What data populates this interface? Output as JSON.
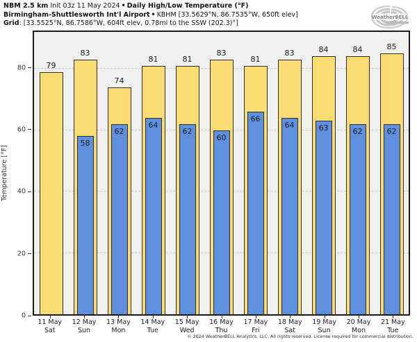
{
  "header": {
    "model": "NBM 2.5 km",
    "init": "Init 03z 11 May 2024",
    "sep": "•",
    "product_title": "Daily High/Low Temperature (°F)",
    "station": "Birmingham-Shuttlesworth Int'l Airport",
    "station_meta": "KBHM [33.5629°N, 86.7535°W, 650ft elev]",
    "grid_label": "Grid",
    "grid_meta": ": [33.5525°N, 86.7586°W, 604ft elev, 0.78mi to the SSW (202.3)°]"
  },
  "logo": {
    "text": "WeatherBELL"
  },
  "footer": {
    "copyright": "© 2024 WeatherBELL Analytics, LLC. All rights reserved. License required for commercial distribution."
  },
  "chart_data": {
    "type": "bar",
    "title": "Daily High/Low Temperature (°F)",
    "ylabel": "Temperature [°F]",
    "ylim": [
      0,
      92
    ],
    "yticks": [
      0,
      20,
      40,
      60,
      80
    ],
    "grid": "horizontal dashed lines at yticks, plot background light gray",
    "legend_position": "none (values labeled on bars)",
    "categories": [
      {
        "date": "11 May",
        "day": "Sat"
      },
      {
        "date": "12 May",
        "day": "Sun"
      },
      {
        "date": "13 May",
        "day": "Mon"
      },
      {
        "date": "14 May",
        "day": "Tue"
      },
      {
        "date": "15 May",
        "day": "Wed"
      },
      {
        "date": "16 May",
        "day": "Thu"
      },
      {
        "date": "17 May",
        "day": "Fri"
      },
      {
        "date": "18 May",
        "day": "Sat"
      },
      {
        "date": "19 May",
        "day": "Sun"
      },
      {
        "date": "20 May",
        "day": "Mon"
      },
      {
        "date": "21 May",
        "day": "Tue"
      }
    ],
    "series": [
      {
        "name": "Daily High",
        "color": "#FBDC73",
        "values": [
          79,
          83,
          74,
          81,
          81,
          83,
          81,
          83,
          84,
          84,
          85
        ]
      },
      {
        "name": "Daily Low",
        "color": "#5F8FDF",
        "values": [
          null,
          58,
          62,
          64,
          62,
          60,
          66,
          64,
          63,
          62,
          62
        ]
      }
    ],
    "colors": {
      "high_bar": "#FBDC73",
      "low_bar": "#5F8FDF",
      "bar_border": "#2E2E2E",
      "plot_bg": "#F0F0F0",
      "gridline": "#C9C9C9"
    }
  }
}
